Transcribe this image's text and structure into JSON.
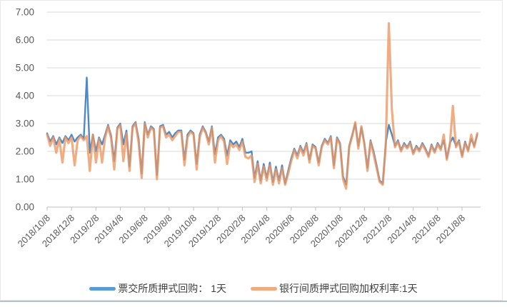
{
  "chart_data": {
    "type": "line",
    "title": "",
    "xlabel": "",
    "ylabel": "",
    "ylim": [
      0,
      7
    ],
    "ytick_labels": [
      "0.00",
      "1.00",
      "2.00",
      "3.00",
      "4.00",
      "5.00",
      "6.00",
      "7.00"
    ],
    "grid": "horizontal",
    "legend_position": "bottom",
    "x_tick_labels": [
      "2018/10/8",
      "2018/12/8",
      "2019/2/8",
      "2019/4/8",
      "2019/6/8",
      "2019/8/8",
      "2019/10/8",
      "2019/12/8",
      "2020/2/8",
      "2020/4/8",
      "2020/6/8",
      "2020/8/8",
      "2020/10/8",
      "2020/12/8",
      "2021/2/8",
      "2021/4/8",
      "2021/6/8",
      "2021/8/8"
    ],
    "x_tick_interval_months": 2,
    "sample_interval_months": 0.25,
    "x_start": "2018/10/8",
    "series": [
      {
        "name": "票交所质押式回购： 1天",
        "color": "#5b9bd5",
        "stroke_color": "#4e88c7",
        "values": [
          2.65,
          2.35,
          2.55,
          2.25,
          2.5,
          2.3,
          2.55,
          2.4,
          2.6,
          2.35,
          2.5,
          2.6,
          2.45,
          4.65,
          1.95,
          2.6,
          2.0,
          2.5,
          2.25,
          2.6,
          2.95,
          2.55,
          1.65,
          2.85,
          3.0,
          2.25,
          2.75,
          1.45,
          2.9,
          3.05,
          2.45,
          1.2,
          3.05,
          2.6,
          2.9,
          2.8,
          1.15,
          2.9,
          2.95,
          2.6,
          2.7,
          2.5,
          2.65,
          2.75,
          2.75,
          1.7,
          2.6,
          2.75,
          2.65,
          1.55,
          2.6,
          2.9,
          2.7,
          2.35,
          2.9,
          1.9,
          2.5,
          2.6,
          2.45,
          1.85,
          2.4,
          2.25,
          2.35,
          2.15,
          2.45,
          1.95,
          1.95,
          2.0,
          1.05,
          1.65,
          0.95,
          1.55,
          1.05,
          1.6,
          0.9,
          1.45,
          0.95,
          1.5,
          0.85,
          1.3,
          1.75,
          2.1,
          1.85,
          2.2,
          1.95,
          2.3,
          1.7,
          2.25,
          2.15,
          1.6,
          2.2,
          2.45,
          2.3,
          2.55,
          1.5,
          2.5,
          2.3,
          1.1,
          0.8,
          2.2,
          2.6,
          3.0,
          2.2,
          2.85,
          2.3,
          1.4,
          2.4,
          2.0,
          1.5,
          0.95,
          0.85,
          2.3,
          2.95,
          2.6,
          2.2,
          2.4,
          2.05,
          2.3,
          2.15,
          2.35,
          1.95,
          2.2,
          2.05,
          2.3,
          2.1,
          1.85,
          2.25,
          2.0,
          2.3,
          2.1,
          2.4,
          1.75,
          2.3,
          2.5,
          2.2,
          2.4,
          1.85,
          2.35,
          2.05,
          2.45,
          2.2,
          2.6
        ]
      },
      {
        "name": "银行间质押式回购加权利率:1天",
        "color": "#f1ab80",
        "stroke_color": "#ec9660",
        "values": [
          2.6,
          2.2,
          2.5,
          1.95,
          2.45,
          1.6,
          2.5,
          2.3,
          2.5,
          1.5,
          2.4,
          2.55,
          2.4,
          2.55,
          1.3,
          2.6,
          1.6,
          2.45,
          1.6,
          2.5,
          2.9,
          2.45,
          1.35,
          2.8,
          2.95,
          1.65,
          2.65,
          1.3,
          2.85,
          3.0,
          2.3,
          1.05,
          3.0,
          2.5,
          2.85,
          2.75,
          1.0,
          2.85,
          2.9,
          2.5,
          2.6,
          2.4,
          2.55,
          2.7,
          2.7,
          1.5,
          2.5,
          2.7,
          2.6,
          1.35,
          2.5,
          2.85,
          2.65,
          2.25,
          2.85,
          1.6,
          2.4,
          2.55,
          2.35,
          1.55,
          2.3,
          2.15,
          2.25,
          2.05,
          2.35,
          1.8,
          1.75,
          1.85,
          0.9,
          1.55,
          0.85,
          1.45,
          0.95,
          1.5,
          0.8,
          1.35,
          0.85,
          1.4,
          0.8,
          1.2,
          1.65,
          2.05,
          1.75,
          2.15,
          1.85,
          2.25,
          1.6,
          2.2,
          2.1,
          1.5,
          2.15,
          2.4,
          2.25,
          2.5,
          1.4,
          2.45,
          2.25,
          1.0,
          0.66,
          2.15,
          2.55,
          3.05,
          2.1,
          2.9,
          2.25,
          1.3,
          2.35,
          1.9,
          1.4,
          0.9,
          0.8,
          2.2,
          6.6,
          3.5,
          2.15,
          2.35,
          2.0,
          2.25,
          2.1,
          2.3,
          1.9,
          2.15,
          2.0,
          2.25,
          2.05,
          1.8,
          2.2,
          1.95,
          2.25,
          2.05,
          2.6,
          1.7,
          2.25,
          3.63,
          2.15,
          2.35,
          1.8,
          2.3,
          2.0,
          2.6,
          2.15,
          2.65
        ]
      }
    ]
  },
  "colors": {
    "gridline": "#d9d9d9",
    "axis_line": "#bfbfbf",
    "tick_mark": "#bfbfbf",
    "axis_text": "#595959",
    "legend_text": "#404040",
    "frame_border": "#e6e8ea",
    "bottom_rule": "#b3c1cb"
  }
}
